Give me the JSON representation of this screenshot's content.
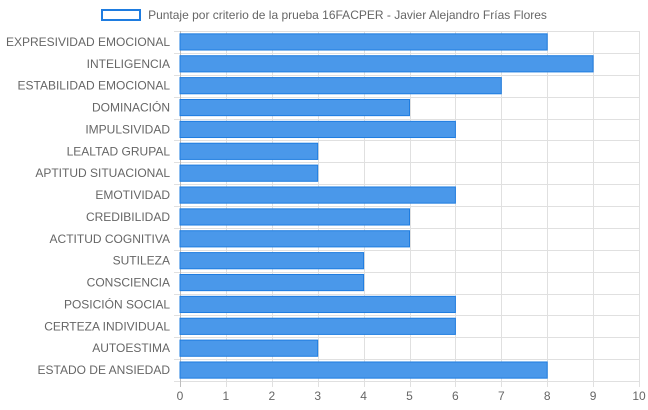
{
  "chart_data": {
    "type": "bar",
    "orientation": "horizontal",
    "legend": {
      "position": "top",
      "label": "Puntaje por criterio de la prueba 16FACPER - Javier Alejandro Frías Flores"
    },
    "categories": [
      "EXPRESIVIDAD EMOCIONAL",
      "INTELIGENCIA",
      "ESTABILIDAD EMOCIONAL",
      "DOMINACIÓN",
      "IMPULSIVIDAD",
      "LEALTAD GRUPAL",
      "APTITUD SITUACIONAL",
      "EMOTIVIDAD",
      "CREDIBILIDAD",
      "ACTITUD COGNITIVA",
      "SUTILEZA",
      "CONSCIENCIA",
      "POSICIÓN SOCIAL",
      "CERTEZA INDIVIDUAL",
      "AUTOESTIMA",
      "ESTADO DE ANSIEDAD"
    ],
    "series": [
      {
        "name": "Puntaje por criterio de la prueba 16FACPER - Javier Alejandro Frías Flores",
        "values": [
          8,
          9,
          7,
          5,
          6,
          3,
          3,
          6,
          5,
          5,
          4,
          4,
          6,
          6,
          3,
          8
        ]
      }
    ],
    "x_ticks": [
      "0",
      "1",
      "2",
      "3",
      "4",
      "5",
      "6",
      "7",
      "8",
      "9",
      "10"
    ],
    "xlim": [
      0,
      10
    ],
    "grid": true,
    "colors": {
      "bar_fill": "#4a98ea",
      "bar_border": "#1e7ce0",
      "grid": "#e0e0e0",
      "axis_text": "#666666"
    }
  }
}
